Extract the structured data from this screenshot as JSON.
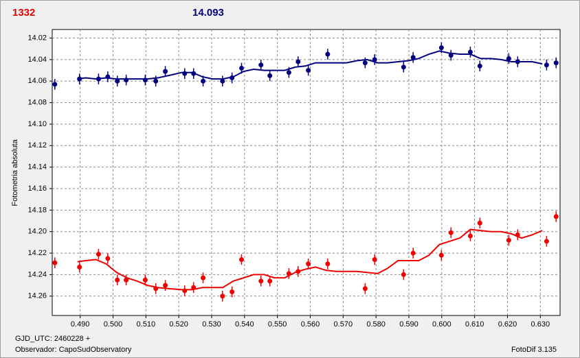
{
  "chart_data": {
    "type": "scatter",
    "readout_left": "1332",
    "readout_right": "14.093",
    "y_label": "Fotometria absoluta",
    "footer_left_1": "GJD_UTC: 2460228 +",
    "footer_left_2": "Observador: CapoSudObservatory",
    "footer_right": "FotoDif 3.135",
    "xlim": [
      0.4815,
      0.636
    ],
    "ylim": [
      14.012,
      14.278
    ],
    "y_inverted": true,
    "grid": true,
    "xticks": [
      {
        "value": 0.49,
        "label": "0.490"
      },
      {
        "value": 0.5,
        "label": "0.500"
      },
      {
        "value": 0.51,
        "label": "0.510"
      },
      {
        "value": 0.52,
        "label": "0.520"
      },
      {
        "value": 0.53,
        "label": "0.530"
      },
      {
        "value": 0.54,
        "label": "0.540"
      },
      {
        "value": 0.55,
        "label": "0.550"
      },
      {
        "value": 0.56,
        "label": "0.560"
      },
      {
        "value": 0.57,
        "label": "0.570"
      },
      {
        "value": 0.58,
        "label": "0.580"
      },
      {
        "value": 0.59,
        "label": "0.590"
      },
      {
        "value": 0.6,
        "label": "0.600"
      },
      {
        "value": 0.61,
        "label": "0.610"
      },
      {
        "value": 0.62,
        "label": "0.620"
      },
      {
        "value": 0.63,
        "label": "0.630"
      }
    ],
    "yticks": [
      14.02,
      14.04,
      14.06,
      14.08,
      {
        "value": 14.1,
        "label": "14.10"
      },
      14.12,
      14.14,
      14.16,
      14.18,
      {
        "value": 14.2,
        "label": "14.20"
      },
      14.22,
      14.24,
      14.26
    ],
    "x": [
      0.4823,
      0.4898,
      0.4956,
      0.4984,
      0.5013,
      0.504,
      0.5098,
      0.513,
      0.5159,
      0.5218,
      0.5245,
      0.5274,
      0.5333,
      0.5362,
      0.5391,
      0.545,
      0.5477,
      0.5535,
      0.5563,
      0.5594,
      0.5653,
      0.5767,
      0.5796,
      0.5884,
      0.5913,
      0.5999,
      0.6028,
      0.6087,
      0.6116,
      0.6204,
      0.6231,
      0.6319,
      0.6348
    ],
    "fit_x": [
      0.4892,
      0.4917,
      0.4948,
      0.4979,
      0.5011,
      0.5042,
      0.5073,
      0.5105,
      0.5136,
      0.5167,
      0.5209,
      0.5241,
      0.5272,
      0.5303,
      0.5334,
      0.5366,
      0.5397,
      0.5428,
      0.546,
      0.5491,
      0.5522,
      0.5554,
      0.5585,
      0.5616,
      0.5648,
      0.5679,
      0.571,
      0.5742,
      0.5773,
      0.5805,
      0.5836,
      0.5867,
      0.5899,
      0.593,
      0.5961,
      0.5993,
      0.6024,
      0.6055,
      0.6087,
      0.6118,
      0.6149,
      0.6181,
      0.6212,
      0.6243,
      0.6275,
      0.6306
    ],
    "series": [
      {
        "color": "#000080",
        "error": 0.005,
        "values": [
          14.063,
          14.058,
          14.058,
          14.056,
          14.06,
          14.059,
          14.059,
          14.06,
          14.051,
          14.053,
          14.053,
          14.06,
          14.06,
          14.057,
          14.048,
          14.045,
          14.055,
          14.052,
          14.042,
          14.05,
          14.035,
          14.043,
          14.04,
          14.047,
          14.038,
          14.029,
          14.036,
          14.033,
          14.046,
          14.039,
          14.042,
          14.045,
          14.043
        ],
        "fit": [
          14.058,
          14.057,
          14.058,
          14.057,
          14.058,
          14.058,
          14.058,
          14.058,
          14.057,
          14.055,
          14.052,
          14.052,
          14.056,
          14.058,
          14.058,
          14.056,
          14.051,
          14.049,
          14.05,
          14.05,
          14.05,
          14.047,
          14.046,
          14.043,
          14.043,
          14.043,
          14.043,
          14.041,
          14.04,
          14.043,
          14.043,
          14.042,
          14.041,
          14.039,
          14.035,
          14.032,
          14.034,
          14.035,
          14.035,
          14.039,
          14.039,
          14.04,
          14.042,
          14.042,
          14.042,
          14.044
        ]
      },
      {
        "color": "#ee0000",
        "error": 0.005,
        "values": [
          14.229,
          14.233,
          14.221,
          14.225,
          14.245,
          14.245,
          14.245,
          14.253,
          14.25,
          14.255,
          14.252,
          14.243,
          14.26,
          14.256,
          14.226,
          14.246,
          14.246,
          14.239,
          14.237,
          14.23,
          14.23,
          14.253,
          14.226,
          14.24,
          14.22,
          14.222,
          14.201,
          14.204,
          14.192,
          14.208,
          14.203,
          14.209,
          14.186
        ],
        "fit": [
          14.228,
          14.227,
          14.226,
          14.23,
          14.238,
          14.243,
          14.246,
          14.25,
          14.252,
          14.253,
          14.254,
          14.254,
          14.252,
          14.252,
          14.252,
          14.246,
          14.243,
          14.24,
          14.24,
          14.243,
          14.243,
          14.238,
          14.235,
          14.233,
          14.236,
          14.237,
          14.237,
          14.237,
          14.238,
          14.239,
          14.234,
          14.227,
          14.227,
          14.227,
          14.222,
          14.212,
          14.209,
          14.206,
          14.198,
          14.199,
          14.2,
          14.2,
          14.202,
          14.206,
          14.203,
          14.199
        ]
      }
    ]
  }
}
